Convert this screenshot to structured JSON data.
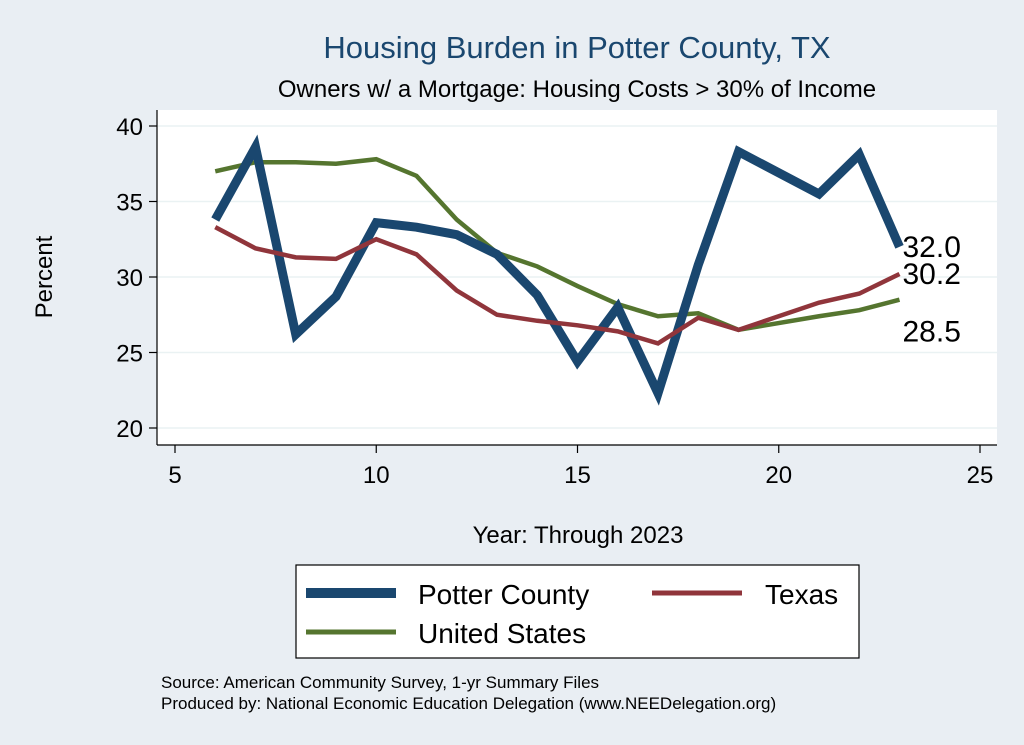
{
  "chart_data": {
    "type": "line",
    "title": "Housing Burden in Potter County, TX",
    "subtitle": "Owners w/ a Mortgage: Housing Costs > 30% of Income",
    "xlabel": "Year: Through 2023",
    "ylabel": "Percent",
    "xlim": [
      5,
      25
    ],
    "ylim": [
      20,
      40
    ],
    "xticks": [
      5,
      10,
      15,
      20,
      25
    ],
    "yticks": [
      20,
      25,
      30,
      35,
      40
    ],
    "grid": true,
    "legend_position": "bottom",
    "series": [
      {
        "key": "potter",
        "name": "Potter County",
        "color": "#1a476f",
        "x": [
          6,
          7,
          8,
          9,
          10,
          11,
          12,
          13,
          14,
          15,
          16,
          17,
          18,
          19,
          21,
          22,
          23
        ],
        "y": [
          33.8,
          38.6,
          26.2,
          28.7,
          33.6,
          33.3,
          32.8,
          31.5,
          28.8,
          24.4,
          28.0,
          22.3,
          30.8,
          38.3,
          35.5,
          38.1,
          32.0
        ],
        "end_label": "32.0"
      },
      {
        "key": "texas",
        "name": "Texas",
        "color": "#90353b",
        "x": [
          6,
          7,
          8,
          9,
          10,
          11,
          12,
          13,
          14,
          15,
          16,
          17,
          18,
          19,
          21,
          22,
          23
        ],
        "y": [
          33.3,
          31.9,
          31.3,
          31.2,
          32.5,
          31.5,
          29.1,
          27.5,
          27.1,
          26.8,
          26.4,
          25.6,
          27.3,
          26.5,
          28.3,
          28.9,
          30.2
        ],
        "end_label": "30.2"
      },
      {
        "key": "us",
        "name": "United States",
        "color": "#55752f",
        "x": [
          6,
          7,
          8,
          9,
          10,
          11,
          12,
          13,
          14,
          15,
          16,
          17,
          18,
          19,
          21,
          22,
          23
        ],
        "y": [
          37.0,
          37.6,
          37.6,
          37.5,
          37.8,
          36.7,
          33.8,
          31.6,
          30.7,
          29.4,
          28.2,
          27.4,
          27.6,
          26.5,
          27.4,
          27.8,
          28.5
        ],
        "end_label": "28.5"
      }
    ]
  },
  "footer": {
    "source": "Source: American Community Survey, 1-yr Summary Files",
    "produced_by": "Produced by: National Economic Education Delegation (www.NEEDelegation.org)"
  }
}
